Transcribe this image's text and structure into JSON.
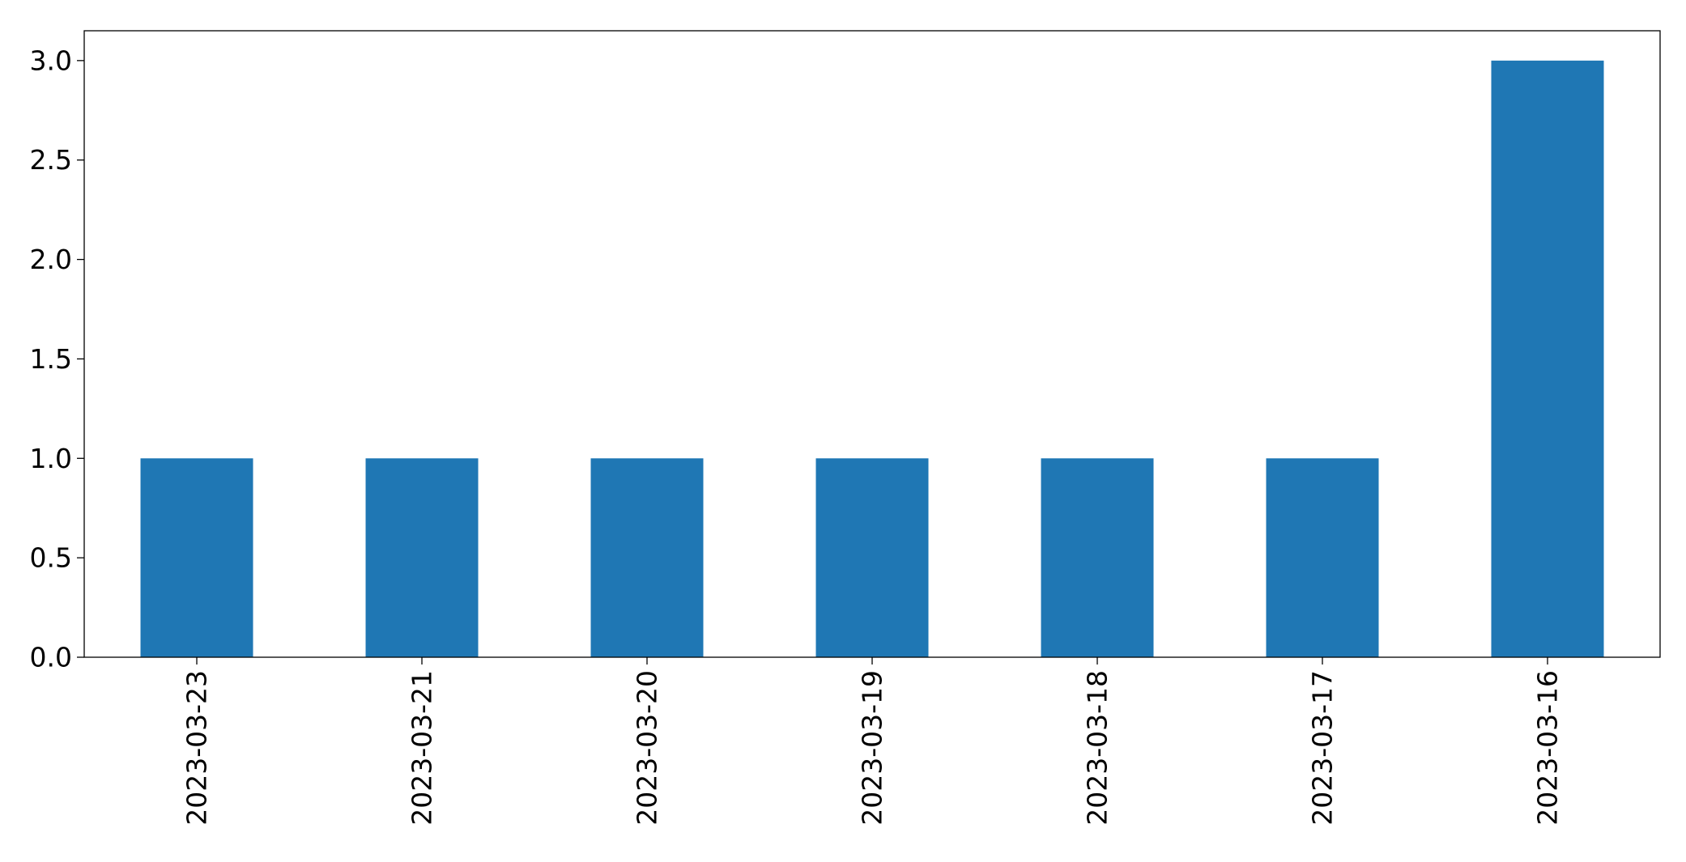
{
  "chart_data": {
    "type": "bar",
    "categories": [
      "2023-03-23",
      "2023-03-21",
      "2023-03-20",
      "2023-03-19",
      "2023-03-18",
      "2023-03-17",
      "2023-03-16"
    ],
    "values": [
      1,
      1,
      1,
      1,
      1,
      1,
      3
    ],
    "title": "",
    "xlabel": "",
    "ylabel": "",
    "ylim": [
      0,
      3.15
    ],
    "yticks": [
      {
        "value": 0.0,
        "label": "0.0"
      },
      {
        "value": 0.5,
        "label": "0.5"
      },
      {
        "value": 1.0,
        "label": "1.0"
      },
      {
        "value": 1.5,
        "label": "1.5"
      },
      {
        "value": 2.0,
        "label": "2.0"
      },
      {
        "value": 2.5,
        "label": "2.5"
      },
      {
        "value": 3.0,
        "label": "3.0"
      }
    ],
    "grid": false,
    "legend": "none",
    "colors": {
      "bar": "#1f77b4",
      "axes": "#000000"
    }
  }
}
